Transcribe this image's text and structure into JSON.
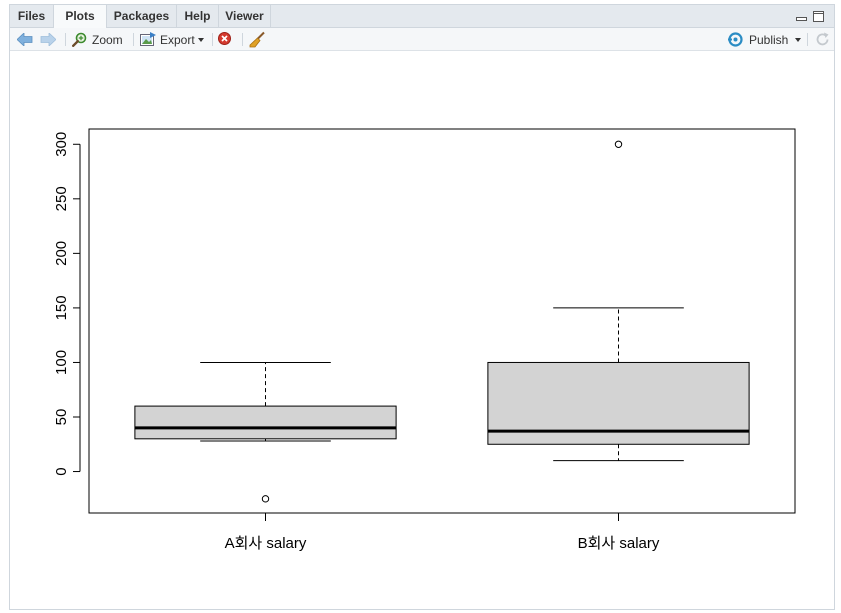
{
  "tabs": [
    {
      "label": "Files",
      "active": false
    },
    {
      "label": "Plots",
      "active": true
    },
    {
      "label": "Packages",
      "active": false
    },
    {
      "label": "Help",
      "active": false
    },
    {
      "label": "Viewer",
      "active": false
    }
  ],
  "toolbar": {
    "zoom_label": "Zoom",
    "export_label": "Export",
    "publish_label": "Publish"
  },
  "icons": {
    "back": "arrow-left-icon",
    "forward": "arrow-right-icon",
    "zoom": "magnifier-icon",
    "export": "export-icon",
    "remove": "remove-plot-icon",
    "clear": "broom-icon",
    "publish": "publish-icon",
    "refresh": "refresh-icon"
  },
  "colors": {
    "box_fill": "#d3d3d3",
    "accent": "#2b8cc4"
  },
  "chart_data": {
    "type": "boxplot",
    "title": "",
    "xlabel": "",
    "ylabel": "",
    "ylim": [
      -38,
      314
    ],
    "yticks": [
      0,
      50,
      100,
      150,
      200,
      250,
      300
    ],
    "categories": [
      "A회사 salary",
      "B회사 salary"
    ],
    "boxes": [
      {
        "name": "A회사 salary",
        "whisker_low": 28,
        "q1": 30,
        "median": 40,
        "q3": 60,
        "whisker_high": 100,
        "outliers": [
          -25
        ]
      },
      {
        "name": "B회사 salary",
        "whisker_low": 10,
        "q1": 25,
        "median": 37,
        "q3": 100,
        "whisker_high": 150,
        "outliers": [
          300
        ]
      }
    ]
  }
}
